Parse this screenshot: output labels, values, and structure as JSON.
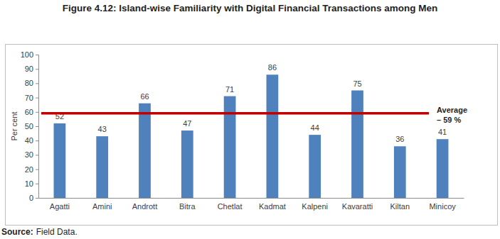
{
  "chart_data": {
    "type": "bar",
    "title": "Figure 4.12: Island-wise Familiarity with Digital Financial Transactions among Men",
    "y_label": "Per cent",
    "categories": [
      "Agatti",
      "Amini",
      "Andrott",
      "Bitra",
      "Chetlat",
      "Kadmat",
      "Kalpeni",
      "Kavaratti",
      "Kiltan",
      "Minicoy"
    ],
    "values": [
      52,
      43,
      66,
      47,
      71,
      86,
      44,
      75,
      36,
      41
    ],
    "color": "#4f81bd",
    "ylim": [
      0,
      100
    ],
    "yticks": [
      0,
      10,
      20,
      30,
      40,
      50,
      60,
      70,
      80,
      90,
      100
    ],
    "grid": false,
    "data_labels": true,
    "annotations": [
      {
        "text": "Average – 59 %",
        "value": 59
      }
    ],
    "source_label": "Source:",
    "source_text": "Field Data."
  }
}
